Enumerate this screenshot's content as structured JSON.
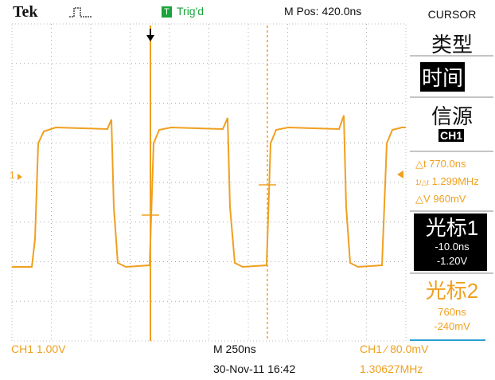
{
  "header": {
    "brand": "Tek",
    "trigger_icon": "T",
    "trigger_status": "Trig'd",
    "position": "M Pos: 420.0ns"
  },
  "menu": {
    "title": "CURSOR",
    "type_label": "类型",
    "type_value": "时间",
    "source_label": "信源",
    "source_value": "CH1",
    "delta_t": "△t 770.0ns",
    "inverse_delta_t": "1.299MHz",
    "delta_v": "△V 960mV",
    "cursor1": {
      "label": "光标1",
      "time": "-10.0ns",
      "voltage": "-1.20V"
    },
    "cursor2": {
      "label": "光标2",
      "time": "760ns",
      "voltage": "-240mV"
    }
  },
  "screen": {
    "channel_marker": "1"
  },
  "footer": {
    "channel_scale": "CH1  1.00V",
    "time_scale": "M 250ns",
    "trigger": "CH1 ⁄ 80.0mV",
    "date_time": "30-Nov-11 16:42",
    "frequency": "1.30627MHz"
  }
}
